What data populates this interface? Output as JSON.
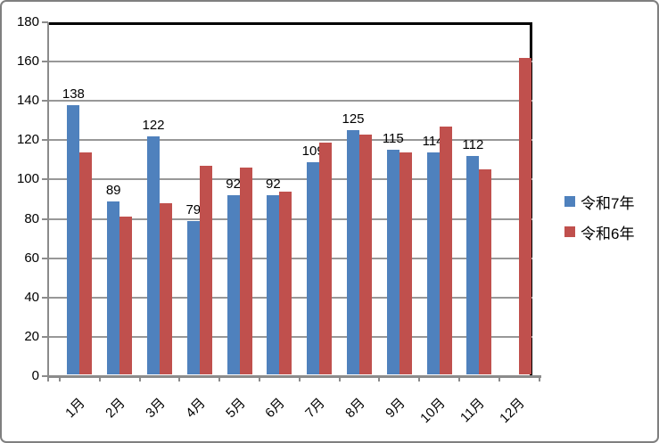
{
  "chart_data": {
    "type": "bar",
    "title": "",
    "categories": [
      "1月",
      "2月",
      "3月",
      "4月",
      "5月",
      "6月",
      "7月",
      "8月",
      "9月",
      "10月",
      "11月",
      "12月"
    ],
    "series": [
      {
        "name": "令和7年",
        "color": "#4F81BD",
        "values": [
          138,
          89,
          122,
          79,
          92,
          92,
          109,
          125,
          115,
          114,
          112,
          null
        ],
        "data_labels_shown": true
      },
      {
        "name": "令和6年",
        "color": "#C0504D",
        "values": [
          114,
          81,
          88,
          107,
          106,
          94,
          119,
          123,
          114,
          127,
          105,
          162
        ],
        "data_labels_shown": false
      }
    ],
    "data_labels": [
      "138",
      "89",
      "122",
      "79",
      "92",
      "92",
      "109",
      "125",
      "115",
      "114",
      "112"
    ],
    "y_axis": {
      "min": 0,
      "max": 180,
      "step": 20,
      "tick_labels": [
        "0",
        "20",
        "40",
        "60",
        "80",
        "100",
        "120",
        "140",
        "160",
        "180"
      ]
    },
    "x_axis": {
      "label_rotation_deg": -45
    },
    "legend": {
      "position": "right",
      "entries": [
        "令和7年",
        "令和6年"
      ]
    },
    "grid": true,
    "colors": {
      "gridline": "#989898",
      "axis": "#8B8B8B",
      "plot_border": "#000000",
      "outer_border": "#7F7F7F",
      "text": "#000000"
    }
  }
}
